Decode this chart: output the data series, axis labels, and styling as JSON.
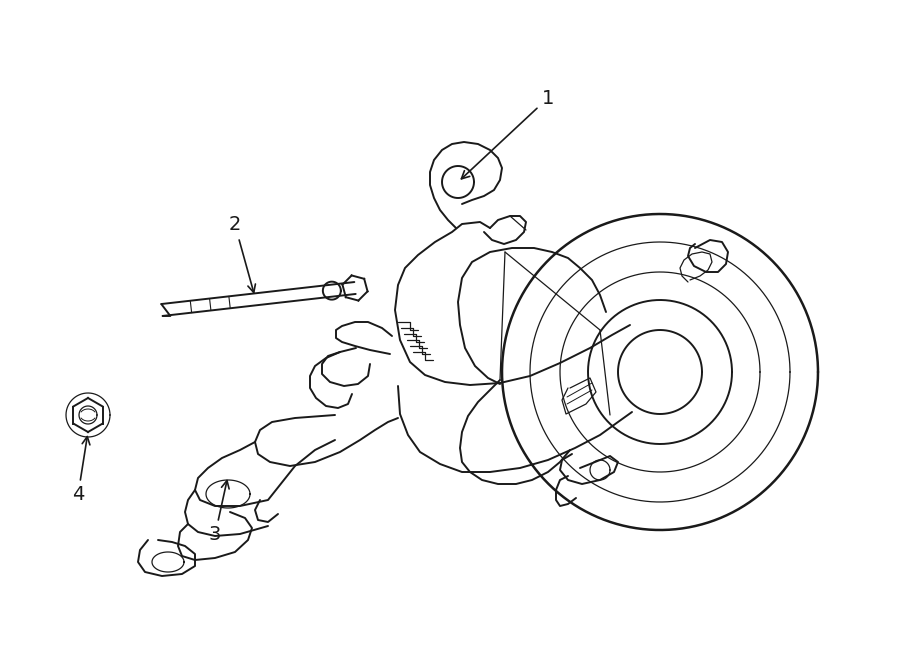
{
  "background_color": "#ffffff",
  "line_color": "#1a1a1a",
  "lw": 1.4,
  "lw_thin": 0.9,
  "lw_thick": 1.8,
  "label_fontsize": 14,
  "figsize": [
    9.0,
    6.61
  ],
  "dpi": 100,
  "xlim": [
    0,
    900
  ],
  "ylim": [
    0,
    661
  ]
}
